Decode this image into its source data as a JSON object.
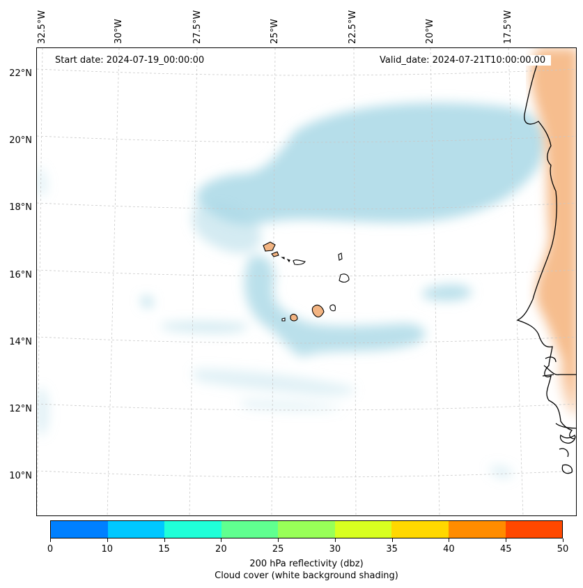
{
  "map": {
    "start_date": "Start date: 2024-07-19_00:00:00",
    "valid_date": "Valid_date: 2024-07-21T10:00:00.00",
    "lon_labels": [
      "32.5°W",
      "30°W",
      "27.5°W",
      "25°W",
      "22.5°W",
      "20°W",
      "17.5°W"
    ],
    "lat_labels": [
      "22°N",
      "20°N",
      "18°N",
      "16°N",
      "14°N",
      "12°N",
      "10°N"
    ],
    "colors": {
      "cloud": "#a9d8e6",
      "land_fill": "#f2b482",
      "coast": "#000000",
      "grid": "#c8c8c8"
    }
  },
  "colorbar": {
    "ticks": [
      "0",
      "10",
      "15",
      "20",
      "25",
      "30",
      "35",
      "40",
      "45",
      "50"
    ],
    "colors": [
      "#0080ff",
      "#00c8ff",
      "#20ffd8",
      "#60ff90",
      "#98ff58",
      "#d8ff20",
      "#ffd800",
      "#ff8c00",
      "#ff4800"
    ],
    "label_line1": "200 hPa reflectivity (dbz)",
    "label_line2": "Cloud cover (white background shading)"
  }
}
